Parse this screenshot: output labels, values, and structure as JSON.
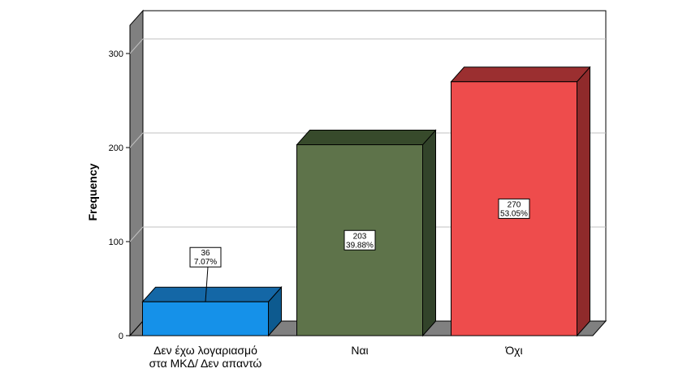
{
  "chart_data": {
    "type": "bar",
    "title": "",
    "xlabel": "",
    "ylabel": "Frequency",
    "ylim": [
      0,
      330
    ],
    "yticks": [
      0,
      100,
      200,
      300
    ],
    "grid": true,
    "style": "3d",
    "categories": [
      [
        "Δεν έχω λογαριασμό",
        "στα ΜΚΔ/ Δεν απαντώ"
      ],
      [
        "Ναι"
      ],
      [
        "Όχι"
      ]
    ],
    "values": [
      36,
      203,
      270
    ],
    "data_labels": [
      {
        "count": "36",
        "percent": "7.07%"
      },
      {
        "count": "203",
        "percent": "39.88%"
      },
      {
        "count": "270",
        "percent": "53.05%"
      }
    ],
    "colors": {
      "bars": [
        "#1591E9",
        "#5E734A",
        "#EE4C4C"
      ],
      "bar_tops": [
        "#1467A6",
        "#374A2B",
        "#9B2F30"
      ],
      "bar_sides": [
        "#0D5A8F",
        "#32432A",
        "#8F2A2B"
      ],
      "wall": "#808080",
      "grid": "#c0c0c0"
    }
  }
}
